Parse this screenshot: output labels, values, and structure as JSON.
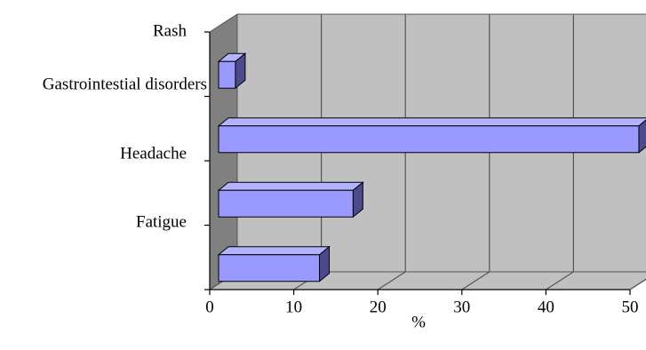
{
  "chart_data": {
    "type": "bar",
    "orientation": "horizontal",
    "three_d": true,
    "categories": [
      "Fatigue",
      "Headache",
      "Gastrointestial disorders",
      "Rash"
    ],
    "values": [
      12,
      16,
      50,
      2
    ],
    "xlabel": "%",
    "xlim": [
      0,
      50
    ],
    "xticks": [
      0,
      10,
      20,
      30,
      40,
      50
    ],
    "xtick_labels": [
      "0",
      "10",
      "20",
      "30",
      "40",
      "50"
    ],
    "grid": true,
    "legend": "none"
  },
  "colors": {
    "bar_front": "#9999ff",
    "bar_top": "#b3b3ff",
    "bar_side": "#4b4b8c",
    "back_wall": "#c0c0c0",
    "side_wall": "#808080",
    "floor": "#c0c0c0",
    "grid_line": "#555555"
  }
}
